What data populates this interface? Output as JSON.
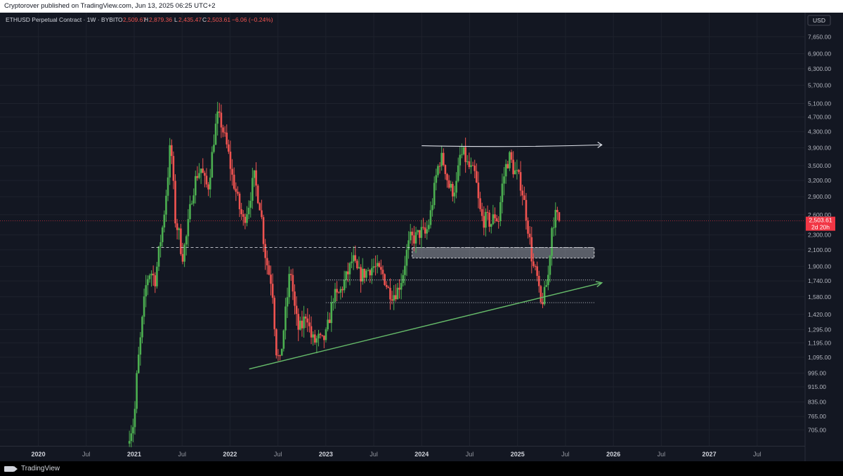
{
  "publish_line": "Cryptorover published on TradingView.com, Jun 13, 2025 06:25 UTC+2",
  "brand": "TradingView",
  "colors": {
    "up": "#26a69a",
    "up_bright": "#4caf50",
    "down": "#ef5350",
    "bg": "#131722",
    "grid": "#1e222d",
    "trend": "#66bb6a",
    "line_white": "#d1d4dc",
    "zone": "#9598a1",
    "price_tag": "#f23645"
  },
  "chart_data": {
    "type": "candlestick",
    "symbol": "ETHUSD Perpetual Contract · 1W · BYBIT",
    "ohlc_header": {
      "O": "2,509.67",
      "H": "2,879.36",
      "L": "2,435.47",
      "C": "2,503.61",
      "change": "−6.06 (−0.24%)"
    },
    "currency": "USD",
    "y_scale": "log",
    "ylim": [
      640,
      8200
    ],
    "y_ticks": [
      7650,
      6900,
      6300,
      5700,
      5100,
      4700,
      4300,
      3900,
      3500,
      3200,
      2900,
      2600,
      2300,
      2100,
      1900,
      1740,
      1580,
      1420,
      1295,
      1195,
      1095,
      995,
      915,
      835,
      765,
      705
    ],
    "y_tick_labels": [
      "7,650.00",
      "6,900.00",
      "6,300.00",
      "5,700.00",
      "5,100.00",
      "4,700.00",
      "4,300.00",
      "3,900.00",
      "3,500.00",
      "3,200.00",
      "2,900.00",
      "2,600.00",
      "2,300.00",
      "2,100.00",
      "1,900.00",
      "1,740.00",
      "1,580.00",
      "1,420.00",
      "1,295.00",
      "1,195.00",
      "1,095.00",
      "995.00",
      "915.00",
      "835.00",
      "765.00",
      "705.00"
    ],
    "x_ticks": [
      {
        "t": 2020.0,
        "label": "2020",
        "major": true
      },
      {
        "t": 2020.5,
        "label": "Jul",
        "major": false
      },
      {
        "t": 2021.0,
        "label": "2021",
        "major": true
      },
      {
        "t": 2021.5,
        "label": "Jul",
        "major": false
      },
      {
        "t": 2022.0,
        "label": "2022",
        "major": true
      },
      {
        "t": 2022.5,
        "label": "Jul",
        "major": false
      },
      {
        "t": 2023.0,
        "label": "2023",
        "major": true
      },
      {
        "t": 2023.5,
        "label": "Jul",
        "major": false
      },
      {
        "t": 2024.0,
        "label": "2024",
        "major": true
      },
      {
        "t": 2024.5,
        "label": "Jul",
        "major": false
      },
      {
        "t": 2025.0,
        "label": "2025",
        "major": true
      },
      {
        "t": 2025.5,
        "label": "Jul",
        "major": false
      },
      {
        "t": 2026.0,
        "label": "2026",
        "major": true
      },
      {
        "t": 2026.5,
        "label": "Jul",
        "major": false
      },
      {
        "t": 2027.0,
        "label": "2027",
        "major": true
      },
      {
        "t": 2027.5,
        "label": "Jul",
        "major": false
      }
    ],
    "xlim": [
      2019.6,
      2028.0
    ],
    "last_price": {
      "value": 2503.61,
      "label": "2,503.61",
      "countdown": "2d 20h"
    },
    "price_path": [
      [
        2020.95,
        690
      ],
      [
        2021.0,
        740
      ],
      [
        2021.03,
        1000
      ],
      [
        2021.07,
        1250
      ],
      [
        2021.1,
        1500
      ],
      [
        2021.13,
        1750
      ],
      [
        2021.17,
        1850
      ],
      [
        2021.22,
        1750
      ],
      [
        2021.26,
        2100
      ],
      [
        2021.3,
        2450
      ],
      [
        2021.33,
        2900
      ],
      [
        2021.36,
        3500
      ],
      [
        2021.38,
        4100
      ],
      [
        2021.4,
        3400
      ],
      [
        2021.43,
        2500
      ],
      [
        2021.47,
        2300
      ],
      [
        2021.5,
        2000
      ],
      [
        2021.55,
        2300
      ],
      [
        2021.6,
        2900
      ],
      [
        2021.65,
        3300
      ],
      [
        2021.7,
        3450
      ],
      [
        2021.73,
        3200
      ],
      [
        2021.77,
        3050
      ],
      [
        2021.8,
        3500
      ],
      [
        2021.84,
        4300
      ],
      [
        2021.87,
        4700
      ],
      [
        2021.9,
        4600
      ],
      [
        2021.94,
        4200
      ],
      [
        2021.98,
        3800
      ],
      [
        2022.02,
        3300
      ],
      [
        2022.06,
        3000
      ],
      [
        2022.1,
        2700
      ],
      [
        2022.14,
        2500
      ],
      [
        2022.2,
        2800
      ],
      [
        2022.25,
        3300
      ],
      [
        2022.28,
        3000
      ],
      [
        2022.32,
        2700
      ],
      [
        2022.36,
        2100
      ],
      [
        2022.4,
        1850
      ],
      [
        2022.44,
        1700
      ],
      [
        2022.48,
        1150
      ],
      [
        2022.52,
        1050
      ],
      [
        2022.56,
        1300
      ],
      [
        2022.6,
        1600
      ],
      [
        2022.63,
        1900
      ],
      [
        2022.67,
        1500
      ],
      [
        2022.71,
        1300
      ],
      [
        2022.75,
        1320
      ],
      [
        2022.8,
        1450
      ],
      [
        2022.84,
        1250
      ],
      [
        2022.88,
        1200
      ],
      [
        2022.92,
        1230
      ],
      [
        2022.96,
        1200
      ],
      [
        2023.0,
        1250
      ],
      [
        2023.04,
        1400
      ],
      [
        2023.08,
        1600
      ],
      [
        2023.12,
        1580
      ],
      [
        2023.16,
        1650
      ],
      [
        2023.2,
        1750
      ],
      [
        2023.24,
        1850
      ],
      [
        2023.28,
        2000
      ],
      [
        2023.32,
        1850
      ],
      [
        2023.36,
        1800
      ],
      [
        2023.4,
        1820
      ],
      [
        2023.45,
        1870
      ],
      [
        2023.5,
        1900
      ],
      [
        2023.55,
        1850
      ],
      [
        2023.6,
        1800
      ],
      [
        2023.65,
        1650
      ],
      [
        2023.7,
        1600
      ],
      [
        2023.75,
        1650
      ],
      [
        2023.8,
        1800
      ],
      [
        2023.84,
        2050
      ],
      [
        2023.88,
        2250
      ],
      [
        2023.92,
        2250
      ],
      [
        2023.96,
        2300
      ],
      [
        2024.0,
        2350
      ],
      [
        2024.04,
        2300
      ],
      [
        2024.08,
        2500
      ],
      [
        2024.12,
        2900
      ],
      [
        2024.16,
        3400
      ],
      [
        2024.2,
        3700
      ],
      [
        2024.24,
        3500
      ],
      [
        2024.28,
        3100
      ],
      [
        2024.32,
        3000
      ],
      [
        2024.36,
        3100
      ],
      [
        2024.4,
        3700
      ],
      [
        2024.44,
        3750
      ],
      [
        2024.48,
        3500
      ],
      [
        2024.52,
        3400
      ],
      [
        2024.56,
        3300
      ],
      [
        2024.6,
        2700
      ],
      [
        2024.64,
        2500
      ],
      [
        2024.68,
        2550
      ],
      [
        2024.72,
        2450
      ],
      [
        2024.76,
        2600
      ],
      [
        2024.8,
        2500
      ],
      [
        2024.84,
        3100
      ],
      [
        2024.88,
        3500
      ],
      [
        2024.92,
        3700
      ],
      [
        2024.96,
        3400
      ],
      [
        2025.0,
        3300
      ],
      [
        2025.04,
        3100
      ],
      [
        2025.08,
        2700
      ],
      [
        2025.12,
        2300
      ],
      [
        2025.16,
        1900
      ],
      [
        2025.2,
        1800
      ],
      [
        2025.24,
        1500
      ],
      [
        2025.28,
        1600
      ],
      [
        2025.32,
        1800
      ],
      [
        2025.36,
        2450
      ],
      [
        2025.4,
        2600
      ],
      [
        2025.44,
        2500
      ]
    ],
    "annotations": [
      {
        "kind": "curved resistance line",
        "from": [
          2024.0,
          3950
        ],
        "to": [
          2025.88,
          3970
        ],
        "arrow": true,
        "color": "white"
      },
      {
        "kind": "dashed horizontal",
        "from": [
          2021.18,
          2130
        ],
        "to": [
          2025.8,
          2130
        ]
      },
      {
        "kind": "supply/demand zone",
        "y_range": [
          2000,
          2130
        ],
        "x_range": [
          2023.9,
          2025.8
        ]
      },
      {
        "kind": "dotted horizontal",
        "from": [
          2023.0,
          1750
        ],
        "to": [
          2025.8,
          1750
        ]
      },
      {
        "kind": "dotted horizontal",
        "from": [
          2023.0,
          1525
        ],
        "to": [
          2025.8,
          1525
        ]
      },
      {
        "kind": "rising trendline",
        "from": [
          2022.2,
          1020
        ],
        "to": [
          2025.88,
          1720
        ],
        "arrow": true,
        "color": "green"
      }
    ]
  }
}
